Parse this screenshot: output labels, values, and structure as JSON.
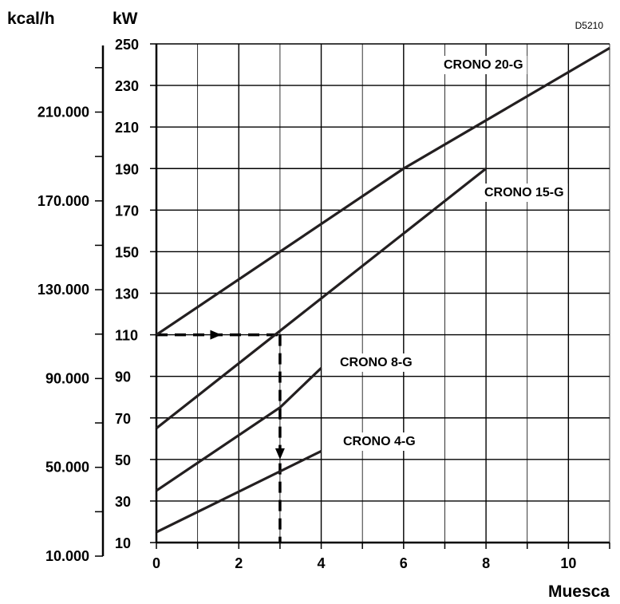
{
  "chart_data": {
    "type": "line",
    "figure_code": "D5210",
    "xlabel": "Muesca",
    "ylabel_left": "kcal/h",
    "ylabel_right": "kW",
    "xlim": [
      0,
      11
    ],
    "ylim": [
      10,
      250
    ],
    "grid": true,
    "x_ticks": [
      0,
      2,
      4,
      6,
      8,
      10
    ],
    "x_tick_labels": [
      "0",
      "2",
      "4",
      "6",
      "8",
      "10"
    ],
    "y_ticks": [
      10,
      30,
      50,
      70,
      90,
      110,
      130,
      150,
      170,
      190,
      210,
      230,
      250
    ],
    "y_tick_labels": [
      "10",
      "30",
      "50",
      "70",
      "90",
      "110",
      "130",
      "150",
      "170",
      "190",
      "210",
      "230",
      "250"
    ],
    "kcal_ticks": [
      10000,
      50000,
      90000,
      130000,
      170000,
      210000
    ],
    "kcal_tick_labels": [
      "10.000",
      "50.000",
      "90.000",
      "130.000",
      "170.000",
      "210.000"
    ],
    "kcal_minor_ticks": [
      30000,
      70000,
      110000,
      150000,
      190000,
      230000
    ],
    "series": [
      {
        "name": "CRONO 20-G",
        "x": [
          0,
          6,
          11
        ],
        "y": [
          110,
          190,
          248
        ]
      },
      {
        "name": "CRONO 15-G",
        "x": [
          0,
          8
        ],
        "y": [
          65,
          190
        ]
      },
      {
        "name": "CRONO 8-G",
        "x": [
          0,
          3,
          4
        ],
        "y": [
          35,
          75,
          94
        ]
      },
      {
        "name": "CRONO 4-G",
        "x": [
          0,
          4
        ],
        "y": [
          15,
          54
        ]
      }
    ],
    "annotation": {
      "x": 3,
      "y": 110,
      "style": "dashed"
    }
  }
}
